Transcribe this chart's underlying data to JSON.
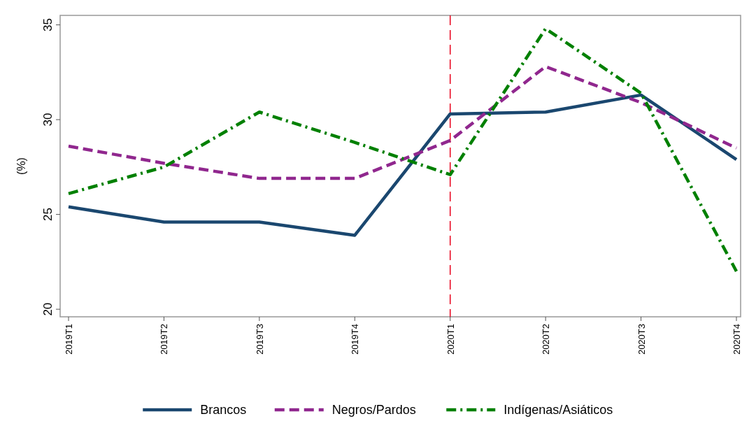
{
  "chart_data": {
    "type": "line",
    "ylabel": "(%)",
    "categories": [
      "2019T1",
      "2019T2",
      "2019T3",
      "2019T4",
      "2020T1",
      "2020T2",
      "2020T3",
      "2020T4"
    ],
    "series": [
      {
        "name": "Brancos",
        "color": "#1a476f",
        "line_style": "solid",
        "values": [
          25.4,
          24.6,
          24.6,
          23.9,
          30.3,
          30.4,
          31.3,
          27.9
        ]
      },
      {
        "name": "Negros/Pardos",
        "color": "#90278e",
        "line_style": "dashed",
        "values": [
          28.6,
          27.7,
          26.9,
          26.9,
          28.9,
          32.8,
          30.9,
          28.5
        ]
      },
      {
        "name": "Indígenas/Asiáticos",
        "color": "#008000",
        "line_style": "dashdot",
        "values": [
          26.1,
          27.5,
          30.4,
          28.8,
          27.1,
          34.8,
          31.4,
          22.0
        ]
      }
    ],
    "ylim": [
      19.6,
      35.5
    ],
    "yticks": [
      20,
      25,
      30,
      35
    ],
    "ref_lines": [
      {
        "axis": "x",
        "value": "2020T1",
        "color": "#e8001c",
        "line_style": "dashed"
      }
    ],
    "legend": "bottom",
    "grid": false
  }
}
